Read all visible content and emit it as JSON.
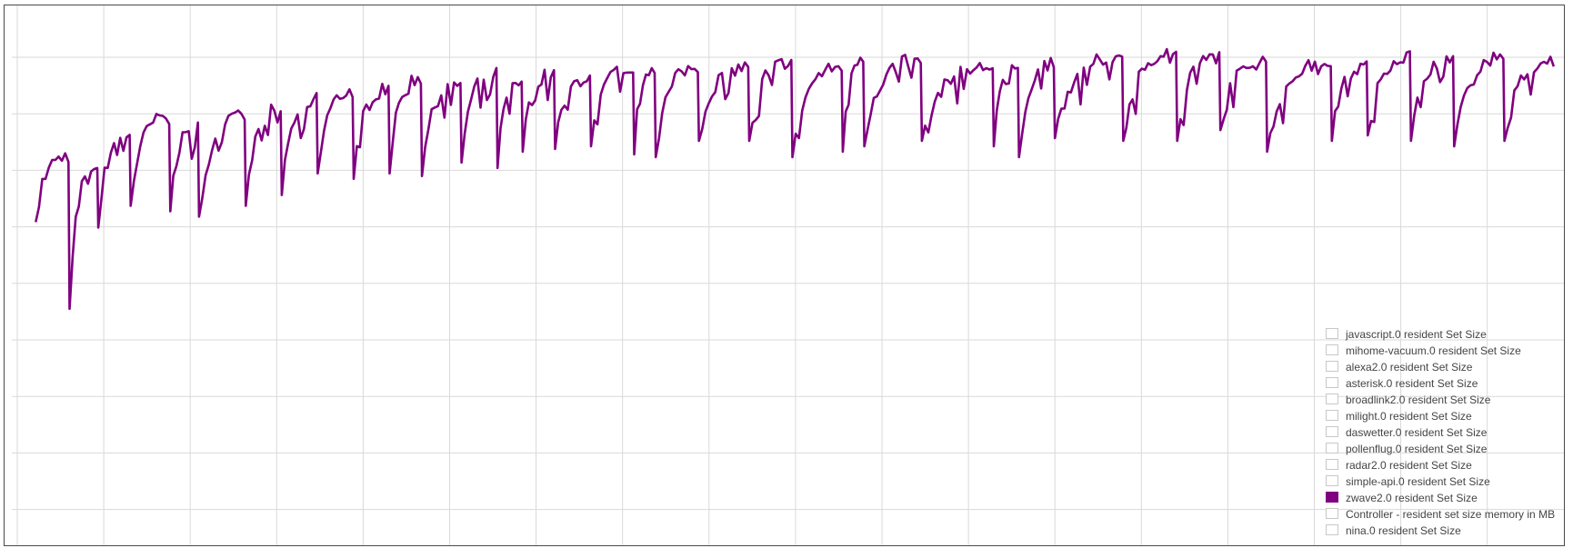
{
  "chart_data": {
    "type": "line",
    "grid": true,
    "legend_position": "bottom-right",
    "title": "",
    "xlabel": "",
    "ylabel": "",
    "ylim": [
      0,
      100
    ],
    "x_gridlines": 18,
    "y_gridlines": 9,
    "active_series": "zwave2.0 resident Set Size",
    "active_color": "#800080",
    "legend": [
      {
        "label": "javascript.0 resident Set Size",
        "active": false
      },
      {
        "label": "mihome-vacuum.0 resident Set Size",
        "active": false
      },
      {
        "label": "alexa2.0 resident Set Size",
        "active": false
      },
      {
        "label": "asterisk.0 resident Set Size",
        "active": false
      },
      {
        "label": "broadlink2.0 resident Set Size",
        "active": false
      },
      {
        "label": "milight.0 resident Set Size",
        "active": false
      },
      {
        "label": "daswetter.0 resident Set Size",
        "active": false
      },
      {
        "label": "pollenflug.0 resident Set Size",
        "active": false
      },
      {
        "label": "radar2.0 resident Set Size",
        "active": false
      },
      {
        "label": "simple-api.0 resident Set Size",
        "active": false
      },
      {
        "label": "zwave2.0 resident Set Size",
        "active": true
      },
      {
        "label": "Controller - resident set size memory in MB",
        "active": false
      },
      {
        "label": "nina.0 resident Set Size",
        "active": false
      }
    ],
    "cycle_starts": [
      0.8,
      5.5,
      9.5,
      14.0,
      19.5,
      23.5,
      30.0,
      35.0,
      40.0,
      45.0,
      50.0,
      54.5,
      60.0,
      65.0,
      68.5,
      73.0,
      78.0,
      84.0,
      87.0,
      93.0,
      100.0,
      106.0,
      113.0,
      116.0,
      124.0,
      134.0,
      137.5,
      142.5,
      152.0,
      159.5,
      165.5,
      172.0,
      181.0,
      186.0,
      192.0,
      198.0,
      205.0
    ],
    "cycle_min": [
      60.0,
      44.0,
      59.0,
      63.0,
      62.0,
      61.0,
      63.0,
      65.0,
      69.0,
      68.0,
      69.0,
      68.5,
      71.0,
      70.0,
      73.0,
      73.5,
      74.0,
      72.5,
      72.0,
      75.0,
      75.0,
      72.0,
      73.0,
      74.0,
      75.0,
      74.0,
      72.0,
      75.5,
      75.0,
      75.0,
      77.0,
      73.0,
      75.0,
      76.0,
      75.0,
      74.0,
      75.0
    ],
    "cycle_max": [
      72.5,
      71.0,
      77.0,
      80.0,
      78.0,
      80.0,
      81.5,
      83.0,
      84.5,
      85.0,
      87.0,
      86.0,
      88.0,
      86.0,
      88.0,
      87.0,
      89.0,
      89.0,
      89.0,
      89.0,
      90.0,
      89.0,
      91.0,
      90.5,
      89.0,
      90.0,
      89.5,
      91.0,
      92.0,
      91.0,
      90.0,
      90.0,
      89.0,
      91.0,
      91.0,
      91.0,
      90.0
    ],
    "x_end": 212.0
  }
}
